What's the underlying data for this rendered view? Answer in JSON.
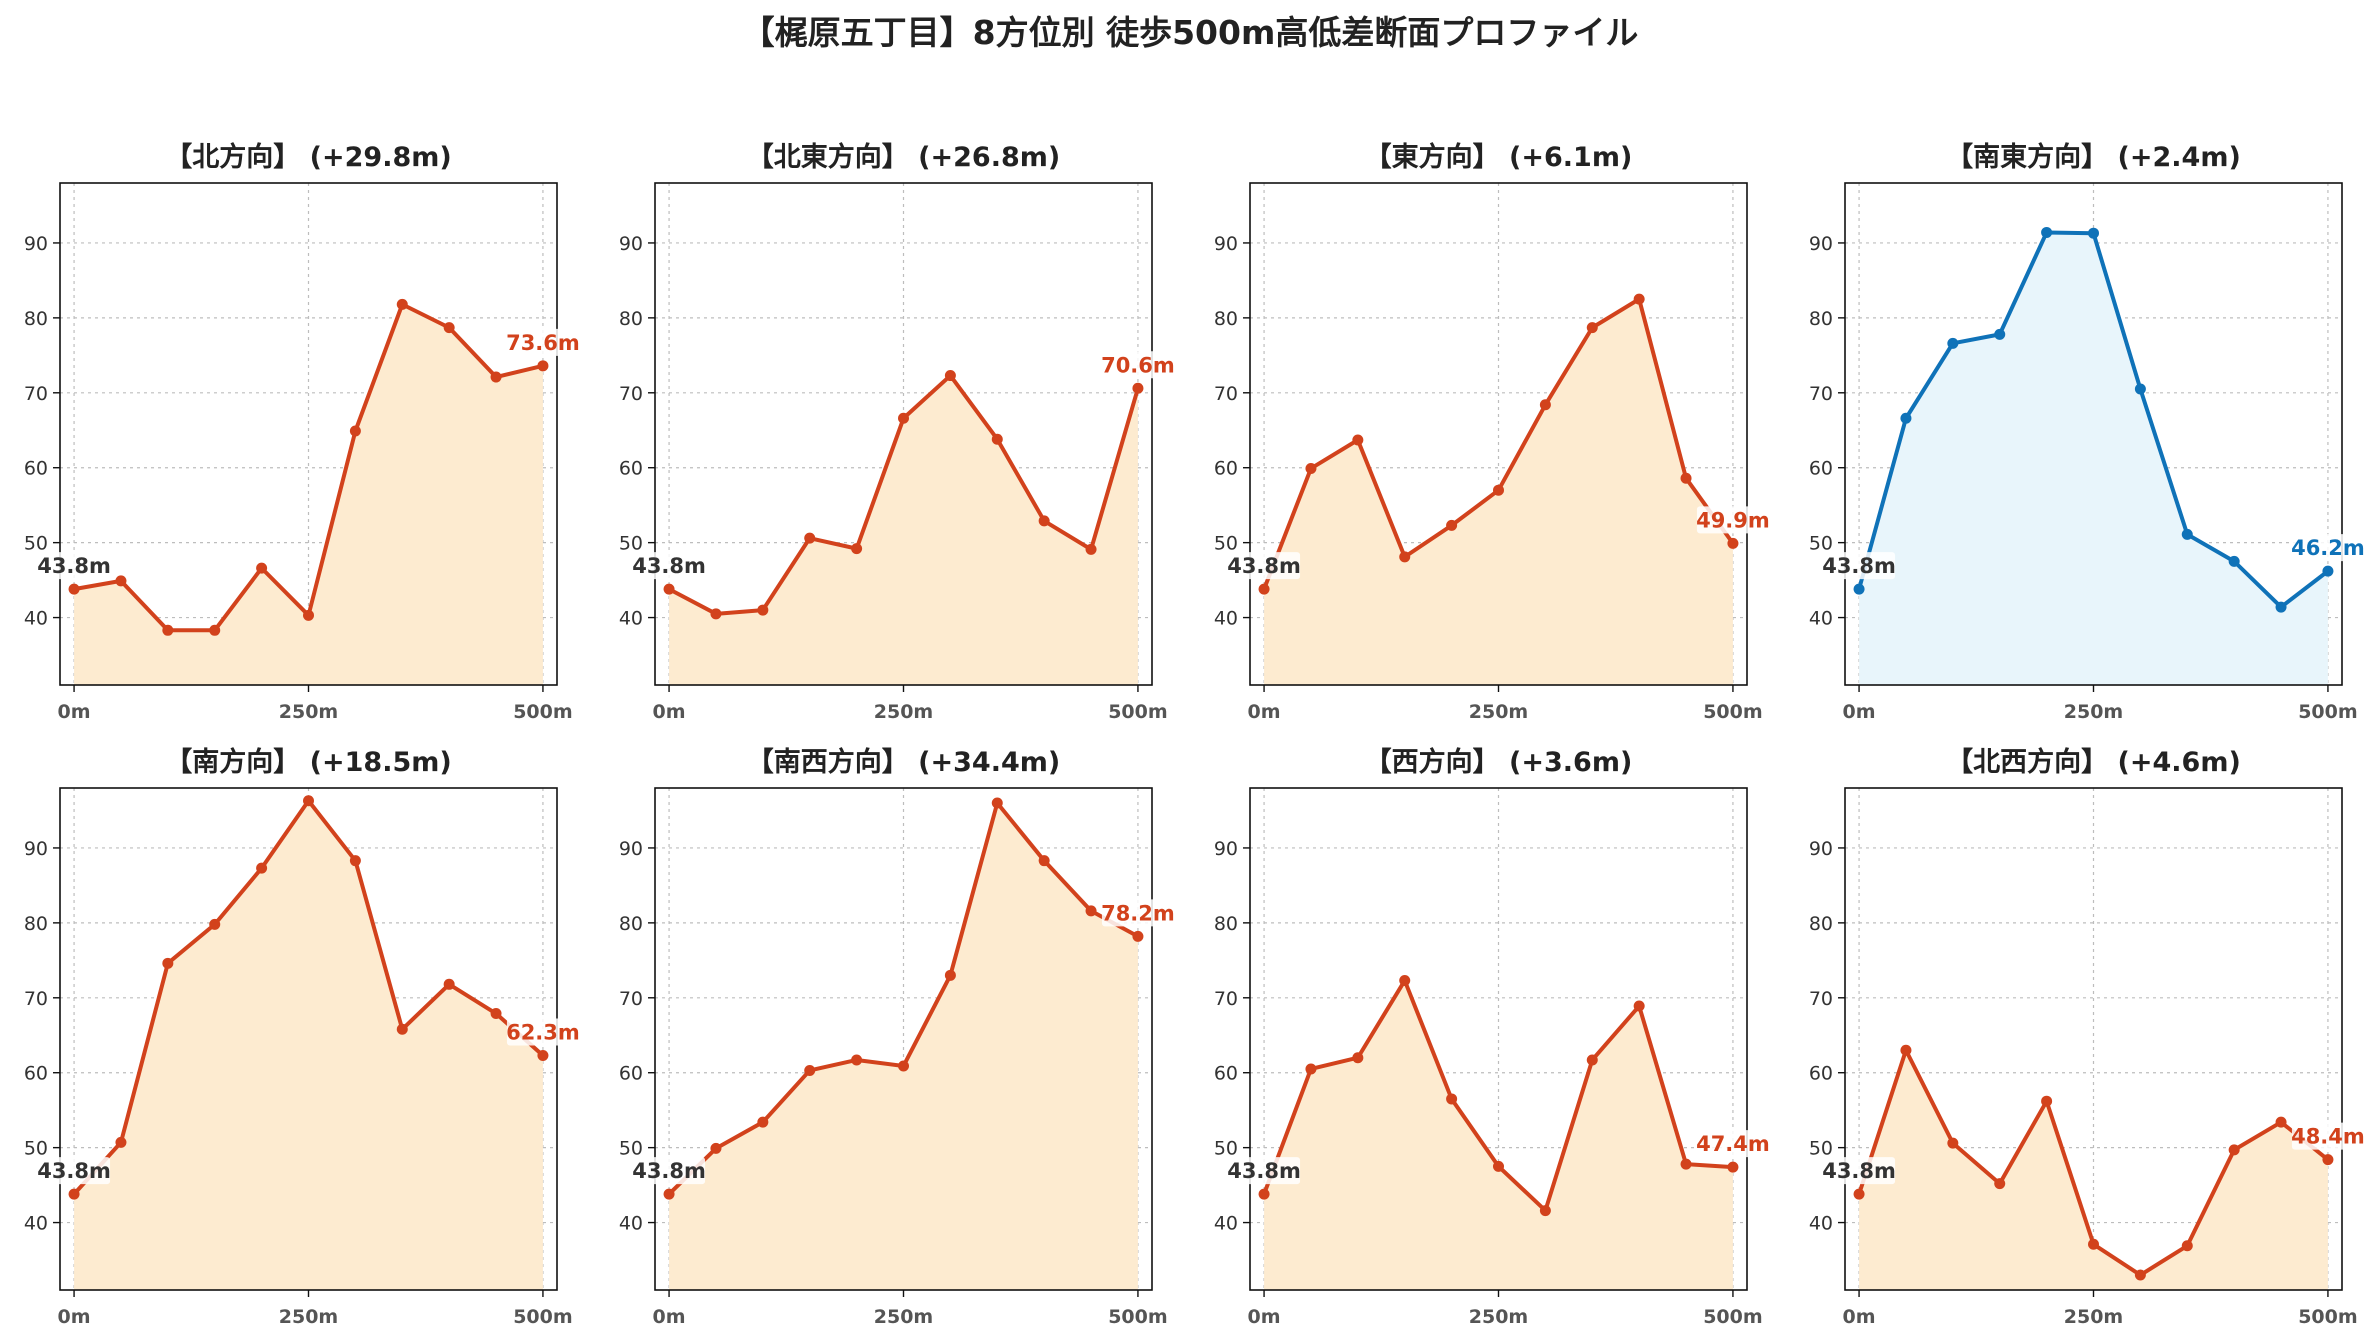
{
  "title": "【梶原五丁目】8方位別 徒歩500m高低差断面プロファイル",
  "colors": {
    "uphill_line": "#d2421c",
    "uphill_fill": "#fdebd0",
    "downhill_line": "#0f72b8",
    "downhill_fill": "#e8f5fb",
    "start_label": "#333333"
  },
  "axes": {
    "yticks": [
      "40",
      "50",
      "60",
      "70",
      "80",
      "90"
    ],
    "xticks": [
      "0m",
      "250m",
      "500m"
    ],
    "ylim": [
      31,
      98
    ],
    "xlim": [
      -15,
      515
    ],
    "grid": true
  },
  "chart_data": [
    {
      "type": "area",
      "title": "【北方向】 (+29.8m)",
      "style": "uphill",
      "start_label": "43.8m",
      "end_label": "73.6m",
      "x": [
        0,
        50,
        100,
        150,
        200,
        250,
        300,
        350,
        400,
        450,
        500
      ],
      "y": [
        43.8,
        44.9,
        38.3,
        38.3,
        46.6,
        40.3,
        64.9,
        81.8,
        78.7,
        72.1,
        73.6
      ]
    },
    {
      "type": "area",
      "title": "【北東方向】 (+26.8m)",
      "style": "uphill",
      "start_label": "43.8m",
      "end_label": "70.6m",
      "x": [
        0,
        50,
        100,
        150,
        200,
        250,
        300,
        350,
        400,
        450,
        500
      ],
      "y": [
        43.8,
        40.5,
        41.0,
        50.6,
        49.2,
        66.6,
        72.3,
        63.8,
        52.9,
        49.1,
        70.6
      ]
    },
    {
      "type": "area",
      "title": "【東方向】 (+6.1m)",
      "style": "uphill",
      "start_label": "43.8m",
      "end_label": "49.9m",
      "x": [
        0,
        50,
        100,
        150,
        200,
        250,
        300,
        350,
        400,
        450,
        500
      ],
      "y": [
        43.8,
        59.9,
        63.7,
        48.1,
        52.3,
        57.0,
        68.4,
        78.7,
        82.5,
        58.6,
        49.9
      ]
    },
    {
      "type": "area",
      "title": "【南東方向】 (+2.4m)",
      "style": "downhill",
      "start_label": "43.8m",
      "end_label": "46.2m",
      "x": [
        0,
        50,
        100,
        150,
        200,
        250,
        300,
        350,
        400,
        450,
        500
      ],
      "y": [
        43.8,
        66.6,
        76.6,
        77.8,
        91.4,
        91.3,
        70.5,
        51.1,
        47.5,
        41.4,
        46.2
      ]
    },
    {
      "type": "area",
      "title": "【南方向】 (+18.5m)",
      "style": "uphill",
      "start_label": "43.8m",
      "end_label": "62.3m",
      "x": [
        0,
        50,
        100,
        150,
        200,
        250,
        300,
        350,
        400,
        450,
        500
      ],
      "y": [
        43.8,
        50.7,
        74.6,
        79.8,
        87.3,
        96.3,
        88.3,
        65.8,
        71.8,
        67.9,
        62.3
      ]
    },
    {
      "type": "area",
      "title": "【南西方向】 (+34.4m)",
      "style": "uphill",
      "start_label": "43.8m",
      "end_label": "78.2m",
      "x": [
        0,
        50,
        100,
        150,
        200,
        250,
        300,
        350,
        400,
        450,
        500
      ],
      "y": [
        43.8,
        49.9,
        53.4,
        60.3,
        61.7,
        60.9,
        73.0,
        96.0,
        88.3,
        81.6,
        78.2
      ]
    },
    {
      "type": "area",
      "title": "【西方向】 (+3.6m)",
      "style": "uphill",
      "start_label": "43.8m",
      "end_label": "47.4m",
      "x": [
        0,
        50,
        100,
        150,
        200,
        250,
        300,
        350,
        400,
        450,
        500
      ],
      "y": [
        43.8,
        60.5,
        62.0,
        72.3,
        56.5,
        47.5,
        41.6,
        61.7,
        68.9,
        47.8,
        47.4
      ]
    },
    {
      "type": "area",
      "title": "【北西方向】 (+4.6m)",
      "style": "uphill",
      "start_label": "43.8m",
      "end_label": "48.4m",
      "x": [
        0,
        50,
        100,
        150,
        200,
        250,
        300,
        350,
        400,
        450,
        500
      ],
      "y": [
        43.8,
        63.0,
        50.6,
        45.2,
        56.2,
        37.1,
        33.0,
        36.9,
        49.7,
        53.4,
        48.4
      ]
    }
  ]
}
